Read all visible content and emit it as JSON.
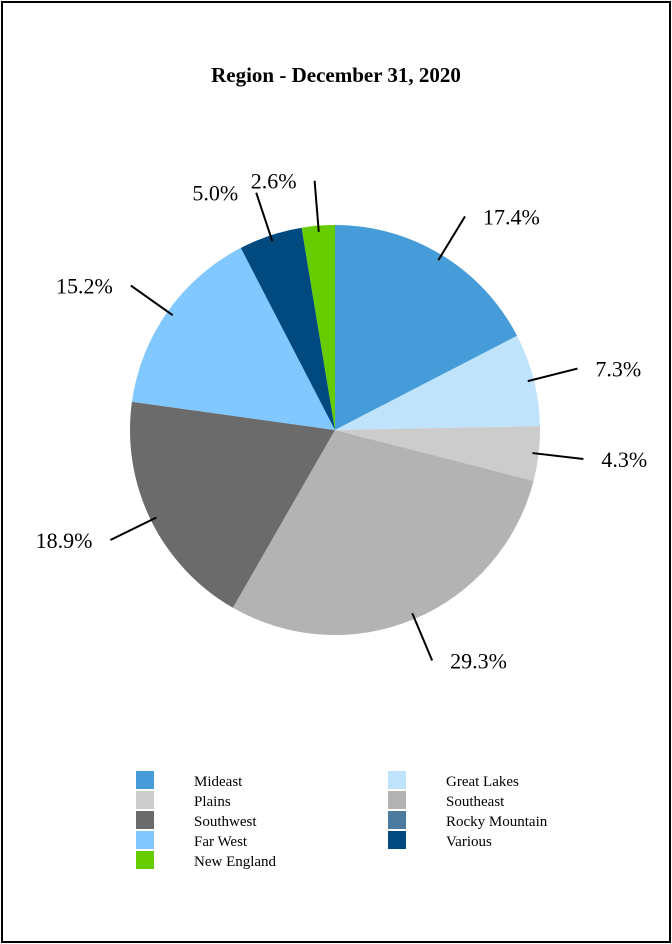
{
  "chart_data": {
    "type": "pie",
    "title": "Region - December 31, 2020",
    "categories": [
      "Mideast",
      "Great Lakes",
      "Plains",
      "Southeast",
      "Southwest",
      "Far West",
      "Rocky Mountain",
      "Various",
      "New England"
    ],
    "values": [
      17.4,
      7.3,
      4.3,
      29.3,
      18.9,
      15.2,
      0.0,
      5.0,
      2.6
    ],
    "data_labels": [
      "17.4%",
      "7.3%",
      "4.3%",
      "29.3%",
      "18.9%",
      "15.2%",
      "",
      "5.0%",
      "2.6%"
    ],
    "colors": [
      "#469CD9",
      "#BFE3FB",
      "#CCCCCC",
      "#B3B3B3",
      "#6B6B6B",
      "#80C8FF",
      "#4D7BA0",
      "#004A7F",
      "#66CC00"
    ],
    "start": "top, clockwise",
    "legend": {
      "placement": "bottom",
      "entries": [
        "Mideast",
        "Great Lakes",
        "Plains",
        "Southeast",
        "Southwest",
        "Rocky Mountain",
        "Far West",
        "Various",
        "New England"
      ]
    }
  }
}
